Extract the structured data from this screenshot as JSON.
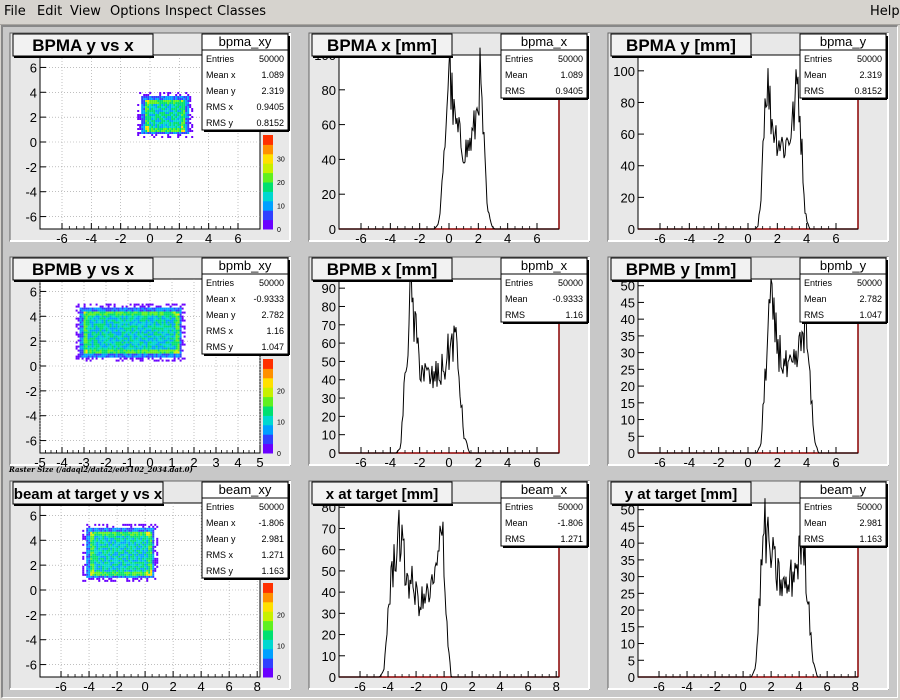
{
  "menu": {
    "items": [
      "File",
      "Edit",
      "View",
      "Options",
      "Inspect",
      "Classes"
    ],
    "help": "Help"
  },
  "caption": "Raster Size (/adaql2/data2/e05102_2034.dat.0)",
  "colors": {
    "histline": "#000000",
    "frame_axis": "#8b0000",
    "pad_bg": "#ffffff",
    "canvas_bg": "#c8c8c8"
  },
  "pads": [
    {
      "kind": "scatter",
      "title": "BPMA y vs x",
      "stat_name": "bpma_xy",
      "stats": [
        [
          "Entries",
          "50000"
        ],
        [
          "Mean x",
          "1.089"
        ],
        [
          "Mean y",
          "2.319"
        ],
        [
          "RMS x",
          "0.9405"
        ],
        [
          "RMS y",
          "0.8152"
        ]
      ],
      "x_ticks": [
        "-6",
        "-4",
        "-2",
        "0",
        "2",
        "4",
        "6"
      ],
      "y_ticks": [
        "-6",
        "-4",
        "-2",
        "0",
        "2",
        "4",
        "6"
      ],
      "xlim": [
        -7.5,
        7.5
      ],
      "ylim": [
        -7,
        7
      ],
      "palette_ticks": [
        "0",
        "10",
        "20",
        "30"
      ],
      "chart_data": {
        "type": "heatmap",
        "xlabel": "",
        "ylabel": "",
        "xlim": [
          -7.5,
          7.5
        ],
        "ylim": [
          -7,
          7
        ],
        "x_range": [
          -0.6,
          2.6
        ],
        "y_range": [
          0.7,
          3.7
        ]
      }
    },
    {
      "kind": "hist",
      "title": "BPMA x [mm]",
      "stat_name": "bpma_x",
      "stats": [
        [
          "Entries",
          "50000"
        ],
        [
          "Mean",
          "1.089"
        ],
        [
          "RMS",
          "0.9405"
        ]
      ],
      "x_ticks": [
        "-6",
        "-4",
        "-2",
        "0",
        "2",
        "4",
        "6"
      ],
      "y_ticks": [
        "0",
        "20",
        "40",
        "60",
        "80",
        "100"
      ],
      "xlim": [
        -7.5,
        7.5
      ],
      "ylim": [
        0,
        100
      ],
      "chart_data": {
        "type": "line",
        "xlim": [
          -7.5,
          7.5
        ],
        "ylim": [
          0,
          100
        ],
        "xlabel": "",
        "ylabel": "",
        "x": [
          -7.5,
          -1.0,
          -0.7,
          -0.4,
          -0.1,
          0.0,
          0.3,
          0.6,
          0.9,
          1.2,
          1.5,
          1.8,
          2.1,
          2.4,
          2.6,
          2.9,
          3.1,
          7.5
        ],
        "y": [
          0,
          0,
          3,
          30,
          80,
          98,
          65,
          55,
          48,
          45,
          50,
          60,
          88,
          45,
          12,
          2,
          0,
          0
        ]
      }
    },
    {
      "kind": "hist",
      "title": "BPMA y [mm]",
      "stat_name": "bpma_y",
      "stats": [
        [
          "Entries",
          "50000"
        ],
        [
          "Mean",
          "2.319"
        ],
        [
          "RMS",
          "0.8152"
        ]
      ],
      "x_ticks": [
        "-6",
        "-4",
        "-2",
        "0",
        "2",
        "4",
        "6"
      ],
      "y_ticks": [
        "0",
        "20",
        "40",
        "60",
        "80",
        "100"
      ],
      "xlim": [
        -7.5,
        7.5
      ],
      "ylim": [
        0,
        110
      ],
      "chart_data": {
        "type": "line",
        "xlim": [
          -7.5,
          7.5
        ],
        "ylim": [
          0,
          110
        ],
        "xlabel": "",
        "ylabel": "",
        "x": [
          -7.5,
          0.5,
          0.7,
          0.9,
          1.1,
          1.3,
          1.6,
          1.9,
          2.2,
          2.5,
          2.8,
          3.1,
          3.4,
          3.7,
          3.9,
          4.2,
          7.5
        ],
        "y": [
          0,
          0,
          2,
          25,
          75,
          95,
          70,
          60,
          55,
          52,
          58,
          70,
          95,
          45,
          10,
          0,
          0
        ]
      }
    },
    {
      "kind": "scatter",
      "title": "BPMB y vs x",
      "stat_name": "bpmb_xy",
      "stats": [
        [
          "Entries",
          "50000"
        ],
        [
          "Mean x",
          "-0.9333"
        ],
        [
          "Mean y",
          "2.782"
        ],
        [
          "RMS x",
          "1.16"
        ],
        [
          "RMS y",
          "1.047"
        ]
      ],
      "x_ticks": [
        "-5",
        "-4",
        "-3",
        "-2",
        "-1",
        "0",
        "1",
        "2",
        "3",
        "4",
        "5"
      ],
      "y_ticks": [
        "-6",
        "-4",
        "-2",
        "0",
        "2",
        "4",
        "6"
      ],
      "xlim": [
        -5,
        5
      ],
      "ylim": [
        -7,
        7
      ],
      "palette_ticks": [
        "0",
        "10",
        "20"
      ],
      "chart_data": {
        "type": "heatmap",
        "xlabel": "",
        "ylabel": "",
        "xlim": [
          -5,
          5
        ],
        "ylim": [
          -7,
          7
        ],
        "x_range": [
          -3.2,
          1.4
        ],
        "y_range": [
          0.8,
          4.7
        ]
      }
    },
    {
      "kind": "hist",
      "title": "BPMB x [mm]",
      "stat_name": "bpmb_x",
      "stats": [
        [
          "Entries",
          "50000"
        ],
        [
          "Mean",
          "-0.9333"
        ],
        [
          "RMS",
          "1.16"
        ]
      ],
      "x_ticks": [
        "-6",
        "-4",
        "-2",
        "0",
        "2",
        "4",
        "6"
      ],
      "y_ticks": [
        "0",
        "10",
        "20",
        "30",
        "40",
        "50",
        "60",
        "70",
        "80",
        "90"
      ],
      "xlim": [
        -7.5,
        7.5
      ],
      "ylim": [
        0,
        95
      ],
      "chart_data": {
        "type": "line",
        "xlim": [
          -7.5,
          7.5
        ],
        "ylim": [
          0,
          95
        ],
        "xlabel": "",
        "ylabel": "",
        "x": [
          -7.5,
          -3.6,
          -3.3,
          -3.0,
          -2.6,
          -2.3,
          -2.0,
          -1.6,
          -1.2,
          -0.8,
          -0.4,
          0.0,
          0.4,
          0.7,
          1.0,
          1.4,
          7.5
        ],
        "y": [
          0,
          0,
          3,
          40,
          88,
          65,
          50,
          42,
          40,
          42,
          45,
          55,
          65,
          40,
          10,
          0,
          0
        ]
      }
    },
    {
      "kind": "hist",
      "title": "BPMB y [mm]",
      "stat_name": "bpmb_y",
      "stats": [
        [
          "Entries",
          "50000"
        ],
        [
          "Mean",
          "2.782"
        ],
        [
          "RMS",
          "1.047"
        ]
      ],
      "x_ticks": [
        "-6",
        "-4",
        "-2",
        "0",
        "2",
        "4",
        "6"
      ],
      "y_ticks": [
        "0",
        "5",
        "10",
        "15",
        "20",
        "25",
        "30",
        "35",
        "40",
        "45",
        "50"
      ],
      "xlim": [
        -7.5,
        7.5
      ],
      "ylim": [
        0,
        52
      ],
      "chart_data": {
        "type": "line",
        "xlim": [
          -7.5,
          7.5
        ],
        "ylim": [
          0,
          52
        ],
        "xlabel": "",
        "ylabel": "",
        "x": [
          -7.5,
          0.6,
          0.9,
          1.2,
          1.5,
          1.9,
          2.3,
          2.7,
          3.1,
          3.5,
          3.9,
          4.2,
          4.5,
          4.8,
          7.5
        ],
        "y": [
          0,
          0,
          3,
          25,
          45,
          35,
          28,
          24,
          25,
          30,
          40,
          22,
          5,
          0,
          0
        ]
      }
    },
    {
      "kind": "scatter",
      "title": "beam at target y vs x",
      "stat_name": "beam_xy",
      "stats": [
        [
          "Entries",
          "50000"
        ],
        [
          "Mean x",
          "-1.806"
        ],
        [
          "Mean y",
          "2.981"
        ],
        [
          "RMS x",
          "1.271"
        ],
        [
          "RMS y",
          "1.163"
        ]
      ],
      "x_ticks": [
        "-6",
        "-4",
        "-2",
        "0",
        "2",
        "4",
        "6",
        "8"
      ],
      "y_ticks": [
        "-6",
        "-4",
        "-2",
        "0",
        "2",
        "4",
        "6"
      ],
      "xlim": [
        -7.5,
        8.2
      ],
      "ylim": [
        -7,
        7
      ],
      "palette_ticks": [
        "0",
        "10",
        "20"
      ],
      "chart_data": {
        "type": "heatmap",
        "xlabel": "",
        "ylabel": "",
        "xlim": [
          -7.5,
          8.2
        ],
        "ylim": [
          -7,
          7
        ],
        "x_range": [
          -4.2,
          0.6
        ],
        "y_range": [
          1.0,
          5.0
        ]
      }
    },
    {
      "kind": "hist",
      "title": "x at target [mm]",
      "stat_name": "beam_x",
      "stats": [
        [
          "Entries",
          "50000"
        ],
        [
          "Mean",
          "-1.806"
        ],
        [
          "RMS",
          "1.271"
        ]
      ],
      "x_ticks": [
        "-6",
        "-4",
        "-2",
        "0",
        "2",
        "4",
        "6",
        "8"
      ],
      "y_ticks": [
        "0",
        "10",
        "20",
        "30",
        "40",
        "50",
        "60",
        "70",
        "80"
      ],
      "xlim": [
        -7.5,
        8.2
      ],
      "ylim": [
        0,
        82
      ],
      "chart_data": {
        "type": "line",
        "xlim": [
          -7.5,
          8.2
        ],
        "ylim": [
          0,
          82
        ],
        "xlabel": "",
        "ylabel": "",
        "x": [
          -7.5,
          -4.6,
          -4.3,
          -4.0,
          -3.6,
          -3.2,
          -2.8,
          -2.4,
          -2.0,
          -1.6,
          -1.2,
          -0.8,
          -0.4,
          -0.1,
          0.2,
          0.5,
          7.5
        ],
        "y": [
          0,
          0,
          3,
          30,
          55,
          70,
          50,
          45,
          38,
          35,
          38,
          42,
          55,
          70,
          25,
          0,
          0
        ]
      }
    },
    {
      "kind": "hist",
      "title": "y at target [mm]",
      "stat_name": "beam_y",
      "stats": [
        [
          "Entries",
          "50000"
        ],
        [
          "Mean",
          "2.981"
        ],
        [
          "RMS",
          "1.163"
        ]
      ],
      "x_ticks": [
        "-6",
        "-4",
        "-2",
        "0",
        "2",
        "4",
        "6",
        "8"
      ],
      "y_ticks": [
        "0",
        "5",
        "10",
        "15",
        "20",
        "25",
        "30",
        "35",
        "40",
        "45",
        "50"
      ],
      "xlim": [
        -7.5,
        8.2
      ],
      "ylim": [
        0,
        52
      ],
      "chart_data": {
        "type": "line",
        "xlim": [
          -7.5,
          8.2
        ],
        "ylim": [
          0,
          52
        ],
        "xlabel": "",
        "ylabel": "",
        "x": [
          -7.5,
          0.6,
          0.9,
          1.2,
          1.5,
          1.9,
          2.3,
          2.7,
          3.1,
          3.5,
          3.9,
          4.3,
          4.7,
          5.0,
          5.3,
          7.5
        ],
        "y": [
          0,
          0,
          3,
          25,
          45,
          38,
          32,
          28,
          26,
          30,
          35,
          42,
          20,
          5,
          0,
          0
        ]
      }
    }
  ]
}
